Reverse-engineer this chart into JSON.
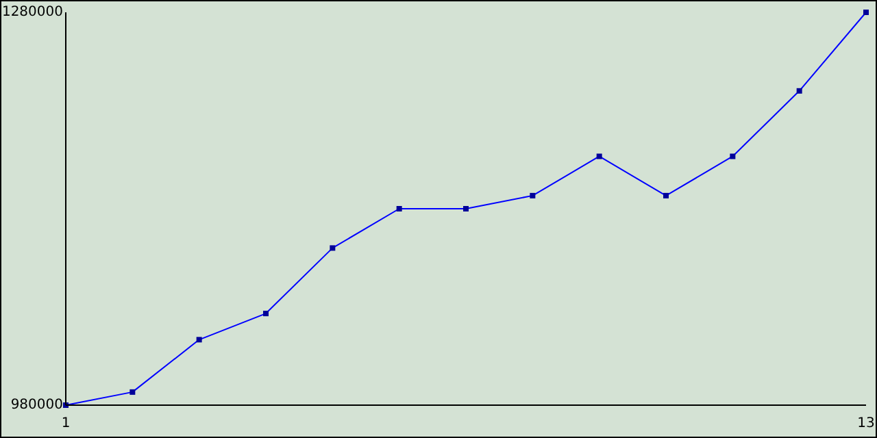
{
  "chart_data": {
    "type": "line",
    "x": [
      1,
      2,
      3,
      4,
      5,
      6,
      7,
      8,
      9,
      10,
      11,
      12,
      13
    ],
    "series": [
      {
        "color": "#0000ff",
        "values": [
          980000,
          990000,
          1030000,
          1050000,
          1100000,
          1130000,
          1130000,
          1140000,
          1170000,
          1140000,
          1170000,
          1220000,
          1280000
        ]
      }
    ],
    "xlim": [
      1,
      13
    ],
    "xticks": [
      1,
      13
    ],
    "ylim": [
      980000,
      1280000
    ],
    "yticks": [
      980000,
      1280000
    ],
    "grid": false,
    "marker": "square",
    "line_style": "solid"
  }
}
